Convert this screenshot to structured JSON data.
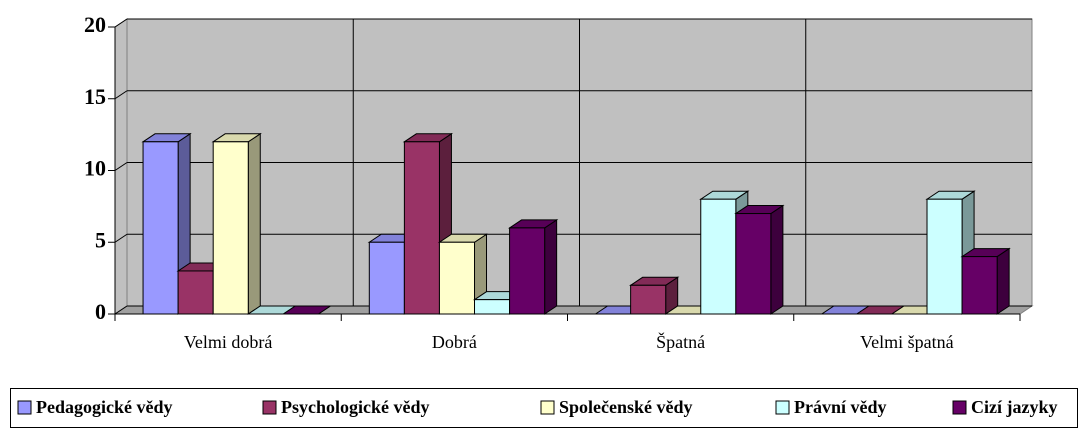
{
  "chart_data": {
    "type": "bar3d",
    "categories": [
      "Velmi dobrá",
      "Dobrá",
      "Špatná",
      "Velmi špatná"
    ],
    "series": [
      {
        "name": "Pedagogické vědy",
        "color": "#9999ff",
        "values": [
          12,
          5,
          0,
          0
        ]
      },
      {
        "name": "Psychologické vědy",
        "color": "#993366",
        "values": [
          3,
          12,
          2,
          0
        ]
      },
      {
        "name": "Společenské vědy",
        "color": "#ffffcc",
        "values": [
          12,
          5,
          0,
          0
        ]
      },
      {
        "name": "Právní vědy",
        "color": "#ccffff",
        "values": [
          0,
          1,
          8,
          8
        ]
      },
      {
        "name": "Cizí jazyky",
        "color": "#660066",
        "values": [
          0,
          6,
          7,
          4
        ]
      }
    ],
    "ylim": [
      0,
      20
    ],
    "yticks": [
      0,
      5,
      10,
      15,
      20
    ],
    "grid": true,
    "legend": "bottom"
  }
}
